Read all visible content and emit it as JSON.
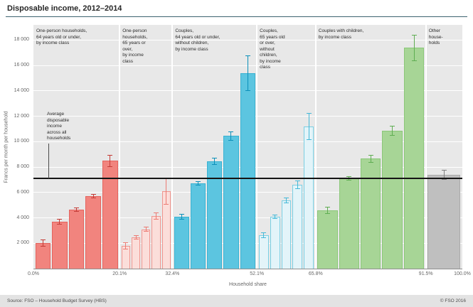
{
  "header": {
    "title": "Disposable income, 2012–2014",
    "divider_color": "#3c6470"
  },
  "footer": {
    "source": "Source: FSO – Household Budget Survey (HBS)",
    "copyright": "© FSO 2016"
  },
  "chart_data": {
    "type": "bar",
    "title": "Disposable income, 2012–2014",
    "ylabel": "Francs per month per household",
    "xlabel": "Household share",
    "ylim": [
      0,
      19200
    ],
    "grid": true,
    "plot_background": "#e8e8e8",
    "average_line": {
      "value": 7100,
      "color": "#141414",
      "label_lines": [
        "Average",
        "disposable",
        "income",
        "across all",
        "households"
      ]
    },
    "yticks": [
      {
        "value": 2000,
        "label": "2 000"
      },
      {
        "value": 4000,
        "label": "4 000"
      },
      {
        "value": 6000,
        "label": "6 000"
      },
      {
        "value": 8000,
        "label": "8 000"
      },
      {
        "value": 10000,
        "label": "10 000"
      },
      {
        "value": 12000,
        "label": "12 000"
      },
      {
        "value": 14000,
        "label": "14 000"
      },
      {
        "value": 16000,
        "label": "16 000"
      },
      {
        "value": 18000,
        "label": "18 000"
      }
    ],
    "xticks": [
      {
        "pct": 0,
        "label": "0.0%"
      },
      {
        "pct": 20.1,
        "label": "20.1%"
      },
      {
        "pct": 32.4,
        "label": "32.4%"
      },
      {
        "pct": 52.1,
        "label": "52.1%"
      },
      {
        "pct": 65.8,
        "label": "65.8%"
      },
      {
        "pct": 91.5,
        "label": "91.5%"
      },
      {
        "pct": 100,
        "label": "100.0%"
      }
    ],
    "groups": [
      {
        "label_lines": [
          "One-person households,",
          "64 years old or under,",
          "by income class"
        ],
        "start": 0,
        "end": 20.1,
        "fill": "#F1847E",
        "edge": "#E4635D",
        "error": "#C43B36",
        "bars": [
          {
            "value": 2000,
            "ci": 250
          },
          {
            "value": 3700,
            "ci": 200
          },
          {
            "value": 4650,
            "ci": 150
          },
          {
            "value": 5700,
            "ci": 150
          },
          {
            "value": 8500,
            "ci": 450
          }
        ]
      },
      {
        "label_lines": [
          "One-person",
          "households,",
          "65 years or",
          "over,",
          "by income",
          "class"
        ],
        "start": 20.1,
        "end": 32.4,
        "fill": "#FBDEDA",
        "edge": "#F0958E",
        "error": "#EC7B73",
        "bars": [
          {
            "value": 1800,
            "ci": 250
          },
          {
            "value": 2450,
            "ci": 150
          },
          {
            "value": 3100,
            "ci": 150
          },
          {
            "value": 4150,
            "ci": 250
          },
          {
            "value": 6100,
            "ci": 1050
          }
        ]
      },
      {
        "label_lines": [
          "Couples,",
          "64 years old or under,",
          "without children,",
          "by income class"
        ],
        "start": 32.4,
        "end": 52.1,
        "fill": "#5CC5E0",
        "edge": "#39B2D2",
        "error": "#0C90BA",
        "bars": [
          {
            "value": 4100,
            "ci": 200
          },
          {
            "value": 6700,
            "ci": 150
          },
          {
            "value": 8450,
            "ci": 250
          },
          {
            "value": 10450,
            "ci": 350
          },
          {
            "value": 15400,
            "ci": 1350
          }
        ]
      },
      {
        "label_lines": [
          "Couples,",
          "65 years old",
          "or over,",
          "without",
          "children,",
          "by income",
          "class"
        ],
        "start": 52.1,
        "end": 65.8,
        "fill": "#E3F4F9",
        "edge": "#7ACFE3",
        "error": "#45B9D8",
        "bars": [
          {
            "value": 2650,
            "ci": 200
          },
          {
            "value": 4100,
            "ci": 150
          },
          {
            "value": 5350,
            "ci": 200
          },
          {
            "value": 6600,
            "ci": 300
          },
          {
            "value": 11200,
            "ci": 1050
          }
        ]
      },
      {
        "label_lines": [
          "Couples with children,",
          "by income class"
        ],
        "start": 65.8,
        "end": 91.5,
        "fill": "#A7D596",
        "edge": "#8BC779",
        "error": "#5FAD52",
        "bars": [
          {
            "value": 4600,
            "ci": 250
          },
          {
            "value": 7100,
            "ci": 150
          },
          {
            "value": 8650,
            "ci": 300
          },
          {
            "value": 10850,
            "ci": 350
          },
          {
            "value": 17400,
            "ci": 1000
          }
        ]
      },
      {
        "label_lines": [
          "Other",
          "house-",
          "holds"
        ],
        "start": 91.5,
        "end": 100,
        "fill": "#BFBFBF",
        "edge": "#A9A9A9",
        "error": "#808080",
        "bars": [
          {
            "value": 7400,
            "ci": 350
          }
        ]
      }
    ]
  }
}
